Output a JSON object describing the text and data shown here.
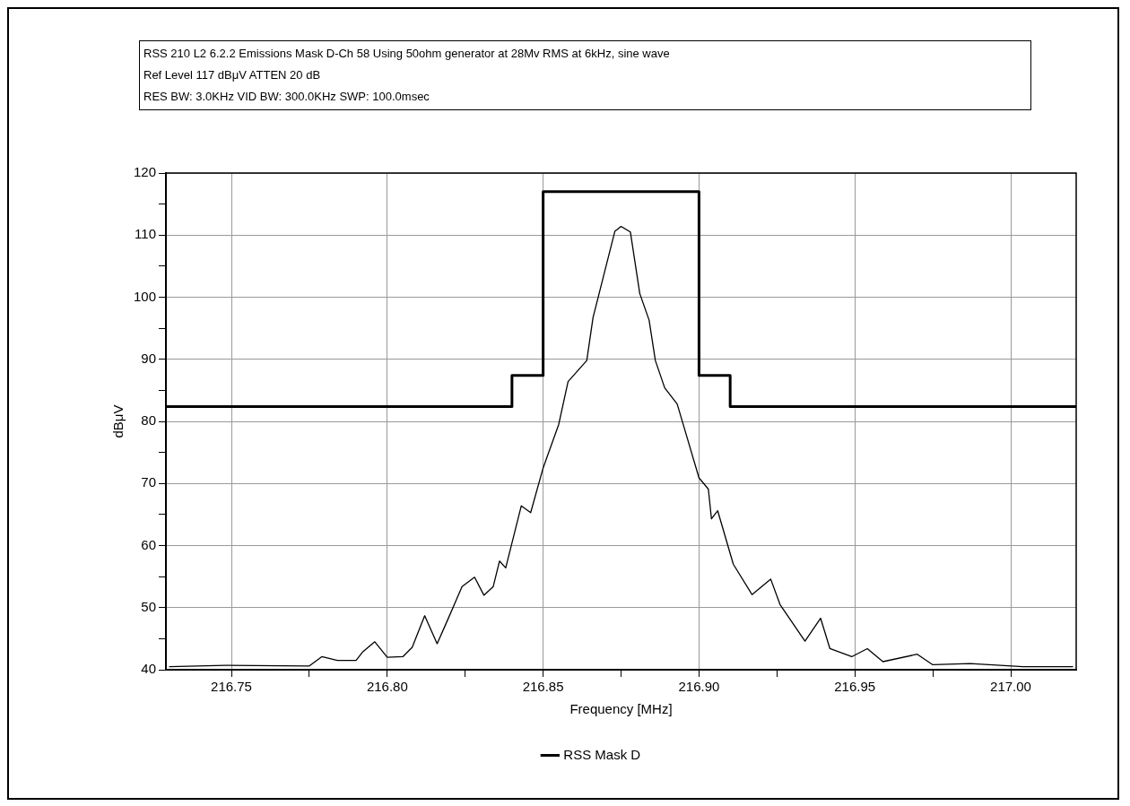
{
  "chart_data": {
    "type": "line",
    "title": "RSS 210 L2 6.2.2 Emissions Mask D-Ch 58 Using 50ohm generator at 28Mv RMS at 6kHz, sine wave",
    "subtitle": "Ref Level 117 dBμV    ATTEN 20 dB",
    "annotations": [
      "RES BW: 3.0KHz  VID BW: 300.0KHz  SWP: 100.0msec"
    ],
    "xlabel": "Frequency [MHz]",
    "ylabel": "dBμV",
    "xlim": [
      216.729,
      217.021
    ],
    "ylim": [
      40,
      120
    ],
    "xticks": [
      {
        "value": 216.75,
        "label": "216.75"
      },
      {
        "value": 216.775,
        "label": null
      },
      {
        "value": 216.8,
        "label": "216.80"
      },
      {
        "value": 216.825,
        "label": null
      },
      {
        "value": 216.85,
        "label": "216.85"
      },
      {
        "value": 216.875,
        "label": null
      },
      {
        "value": 216.9,
        "label": "216.90"
      },
      {
        "value": 216.925,
        "label": null
      },
      {
        "value": 216.95,
        "label": "216.95"
      },
      {
        "value": 216.975,
        "label": null
      },
      {
        "value": 217,
        "label": "217.00"
      }
    ],
    "yticks": [
      40,
      {
        "value": 45,
        "label": null
      },
      50,
      {
        "value": 55,
        "label": null
      },
      60,
      {
        "value": 65,
        "label": null
      },
      70,
      {
        "value": 75,
        "label": null
      },
      80,
      {
        "value": 85,
        "label": null
      },
      90,
      {
        "value": 95,
        "label": null
      },
      100,
      {
        "value": 105,
        "label": null
      },
      110,
      {
        "value": 115,
        "label": null
      },
      120
    ],
    "grid": true,
    "legend": "bottom",
    "marker": "none",
    "line_style": "solid",
    "series": [
      {
        "name": "RSS Mask D",
        "color": "#000000",
        "x": [
          216.729,
          216.84,
          216.84,
          216.85,
          216.85,
          216.9,
          216.9,
          216.91,
          216.91,
          217.021
        ],
        "values": [
          82.4,
          82.4,
          87.4,
          87.4,
          117,
          117,
          87.4,
          87.4,
          82.4,
          82.4
        ]
      },
      {
        "color": "#000000",
        "x": [
          216.73,
          216.748,
          216.775,
          216.779,
          216.784,
          216.79,
          216.792,
          216.796,
          216.8,
          216.805,
          216.808,
          216.812,
          216.816,
          216.819,
          216.824,
          216.828,
          216.831,
          216.834,
          216.836,
          216.838,
          216.843,
          216.846,
          216.85,
          216.855,
          216.858,
          216.864,
          216.866,
          216.873,
          216.875,
          216.878,
          216.881,
          216.884,
          216.886,
          216.889,
          216.893,
          216.9,
          216.903,
          216.904,
          216.906,
          216.911,
          216.917,
          216.923,
          216.926,
          216.934,
          216.939,
          216.942,
          216.949,
          216.954,
          216.959,
          216.97,
          216.975,
          216.987,
          217.004,
          217.02
        ],
        "values": [
          40.5,
          40.7,
          40.6,
          42.1,
          41.5,
          41.5,
          42.8,
          44.5,
          42,
          42.1,
          43.6,
          48.7,
          44.2,
          47.6,
          53.4,
          54.9,
          52,
          53.4,
          57.5,
          56.4,
          66.4,
          65.3,
          72.5,
          79.5,
          86.4,
          89.8,
          96.7,
          110.6,
          111.4,
          110.5,
          100.6,
          96.3,
          89.8,
          85.4,
          82.8,
          70.9,
          69.1,
          64.3,
          65.6,
          57,
          52.1,
          54.6,
          50.5,
          44.6,
          48.3,
          43.4,
          42.1,
          43.4,
          41.3,
          42.5,
          40.8,
          41,
          40.5,
          40.5
        ]
      }
    ]
  }
}
